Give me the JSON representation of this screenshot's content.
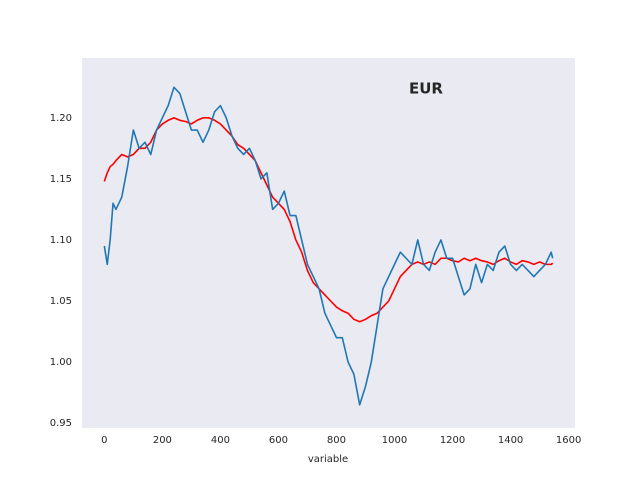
{
  "chart_data": {
    "type": "line",
    "title": "EUR",
    "xlabel": "variable",
    "x": [
      0,
      10,
      20,
      30,
      40,
      60,
      80,
      100,
      120,
      140,
      160,
      180,
      200,
      220,
      240,
      260,
      280,
      300,
      320,
      340,
      360,
      380,
      400,
      420,
      440,
      460,
      480,
      500,
      520,
      540,
      560,
      580,
      600,
      620,
      640,
      660,
      680,
      700,
      720,
      740,
      760,
      780,
      800,
      820,
      840,
      860,
      880,
      900,
      920,
      940,
      960,
      980,
      1000,
      1020,
      1040,
      1060,
      1080,
      1100,
      1120,
      1140,
      1160,
      1180,
      1200,
      1220,
      1240,
      1260,
      1280,
      1300,
      1320,
      1340,
      1360,
      1380,
      1400,
      1420,
      1440,
      1460,
      1480,
      1500,
      1520,
      1540,
      1545
    ],
    "series": [
      {
        "color": "#ff0000",
        "values": [
          1.148,
          1.155,
          1.16,
          1.162,
          1.165,
          1.17,
          1.168,
          1.17,
          1.175,
          1.175,
          1.18,
          1.19,
          1.195,
          1.198,
          1.2,
          1.198,
          1.197,
          1.195,
          1.198,
          1.2,
          1.2,
          1.198,
          1.195,
          1.19,
          1.185,
          1.178,
          1.175,
          1.17,
          1.165,
          1.155,
          1.145,
          1.135,
          1.13,
          1.125,
          1.115,
          1.1,
          1.09,
          1.075,
          1.065,
          1.06,
          1.055,
          1.05,
          1.045,
          1.042,
          1.04,
          1.035,
          1.033,
          1.035,
          1.038,
          1.04,
          1.045,
          1.05,
          1.06,
          1.07,
          1.075,
          1.08,
          1.082,
          1.08,
          1.082,
          1.08,
          1.085,
          1.085,
          1.083,
          1.082,
          1.085,
          1.083,
          1.085,
          1.083,
          1.082,
          1.08,
          1.083,
          1.085,
          1.082,
          1.08,
          1.083,
          1.082,
          1.08,
          1.082,
          1.08,
          1.08,
          1.081
        ]
      },
      {
        "color": "#1f77b4",
        "values": [
          1.095,
          1.08,
          1.1,
          1.13,
          1.125,
          1.135,
          1.16,
          1.19,
          1.175,
          1.18,
          1.17,
          1.19,
          1.2,
          1.21,
          1.225,
          1.22,
          1.205,
          1.19,
          1.19,
          1.18,
          1.19,
          1.205,
          1.21,
          1.2,
          1.185,
          1.175,
          1.17,
          1.175,
          1.165,
          1.15,
          1.155,
          1.125,
          1.13,
          1.14,
          1.12,
          1.12,
          1.1,
          1.08,
          1.07,
          1.06,
          1.04,
          1.03,
          1.02,
          1.02,
          1.0,
          0.99,
          0.965,
          0.98,
          1.0,
          1.03,
          1.06,
          1.07,
          1.08,
          1.09,
          1.085,
          1.08,
          1.1,
          1.08,
          1.075,
          1.09,
          1.1,
          1.085,
          1.085,
          1.07,
          1.055,
          1.06,
          1.08,
          1.065,
          1.08,
          1.075,
          1.09,
          1.095,
          1.08,
          1.075,
          1.08,
          1.075,
          1.07,
          1.075,
          1.08,
          1.09,
          1.085
        ]
      }
    ],
    "xlim": [
      -77,
      1622
    ],
    "ylim": [
      0.946,
      1.249
    ],
    "xticks": [
      0,
      200,
      400,
      600,
      800,
      1000,
      1200,
      1400,
      1600
    ],
    "yticks": [
      0.95,
      {
        "value": 1,
        "label": "1.00"
      },
      1.05,
      {
        "value": 1.1,
        "label": "1.10"
      },
      1.15,
      {
        "value": 1.2,
        "label": "1.20"
      }
    ],
    "grid": false,
    "background": "#eaeaf2"
  }
}
